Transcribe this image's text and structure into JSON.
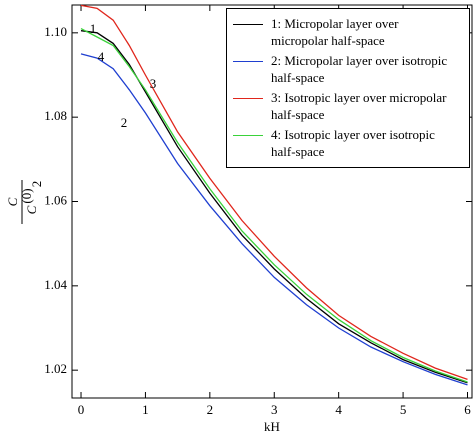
{
  "chart_data": {
    "type": "line",
    "xlabel": "kH",
    "ylabel": {
      "numerator": "C",
      "denominator": "C",
      "denominator_sup": "(0)",
      "denominator_sub": "2"
    },
    "x": [
      0,
      0.25,
      0.5,
      0.75,
      1,
      1.5,
      2,
      2.5,
      3,
      3.5,
      4,
      4.5,
      5,
      5.5,
      6
    ],
    "series": [
      {
        "name": "1: Micropolar layer over micropolar half-space",
        "color": "#000000",
        "values": [
          1.1005,
          1.1,
          1.0975,
          1.0925,
          1.086,
          1.073,
          1.062,
          1.052,
          1.044,
          1.037,
          1.031,
          1.0265,
          1.0225,
          1.0195,
          1.017
        ]
      },
      {
        "name": "2: Micropolar layer over isotropic half-space",
        "color": "#1f3fd0",
        "values": [
          1.095,
          1.094,
          1.0915,
          1.0865,
          1.081,
          1.069,
          1.059,
          1.05,
          1.042,
          1.0355,
          1.03,
          1.0255,
          1.022,
          1.019,
          1.0165
        ]
      },
      {
        "name": "3: Isotropic layer over micropolar half-space",
        "color": "#e0261c",
        "values": [
          1.1065,
          1.1058,
          1.103,
          1.097,
          1.09,
          1.0765,
          1.0655,
          1.0555,
          1.047,
          1.0395,
          1.033,
          1.028,
          1.024,
          1.0205,
          1.0178
        ]
      },
      {
        "name": "4: Isotropic layer over isotropic half-space",
        "color": "#3ad23a",
        "values": [
          1.101,
          1.099,
          1.097,
          1.092,
          1.0865,
          1.074,
          1.063,
          1.053,
          1.045,
          1.038,
          1.032,
          1.027,
          1.023,
          1.0198,
          1.0172
        ]
      }
    ],
    "annotations": [
      "1",
      "2",
      "3",
      "4"
    ],
    "xlim": [
      -0.14,
      6.07
    ],
    "ylim": [
      1.0134,
      1.1066
    ],
    "xticks": [
      0,
      1,
      2,
      3,
      4,
      5,
      6
    ],
    "yticks": [
      1.02,
      1.04,
      1.06,
      1.08,
      {
        "value": 1.1,
        "label": "1.10"
      }
    ],
    "legend": "upper right"
  }
}
